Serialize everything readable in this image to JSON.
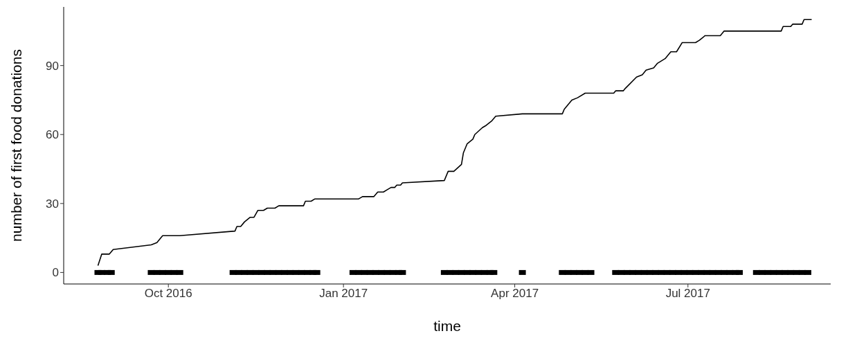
{
  "chart_data": {
    "type": "line",
    "xlabel": "time",
    "ylabel": "number of first food donations",
    "xlim": [
      "2016-08-07",
      "2017-09-14"
    ],
    "xticks": [
      {
        "value": "2016-10-01",
        "label": "Oct 2016"
      },
      {
        "value": "2017-01-01",
        "label": "Jan 2017"
      },
      {
        "value": "2017-04-01",
        "label": "Apr 2017"
      },
      {
        "value": "2017-07-01",
        "label": "Jul 2017"
      }
    ],
    "ylim": [
      -5,
      115.5
    ],
    "yticks": [
      0,
      30,
      60,
      90
    ],
    "grid": false,
    "series": [
      {
        "type": "line",
        "color": "#000000",
        "line_style": "solid",
        "x": [
          "2016-08-25",
          "2016-08-27",
          "2016-08-31",
          "2016-09-02",
          "2016-09-22",
          "2016-09-25",
          "2016-09-27",
          "2016-09-28",
          "2016-10-07",
          "2016-11-05",
          "2016-11-06",
          "2016-11-08",
          "2016-11-10",
          "2016-11-13",
          "2016-11-15",
          "2016-11-17",
          "2016-11-20",
          "2016-11-22",
          "2016-11-26",
          "2016-11-28",
          "2016-12-11",
          "2016-12-12",
          "2016-12-15",
          "2016-12-17",
          "2017-01-09",
          "2017-01-11",
          "2017-01-17",
          "2017-01-19",
          "2017-01-22",
          "2017-01-24",
          "2017-01-26",
          "2017-01-28",
          "2017-01-29",
          "2017-01-31",
          "2017-02-01",
          "2017-02-23",
          "2017-02-25",
          "2017-02-28",
          "2017-03-04",
          "2017-03-05",
          "2017-03-07",
          "2017-03-10",
          "2017-03-11",
          "2017-03-15",
          "2017-03-17",
          "2017-03-20",
          "2017-03-22",
          "2017-04-05",
          "2017-04-26",
          "2017-04-27",
          "2017-05-01",
          "2017-05-04",
          "2017-05-08",
          "2017-05-23",
          "2017-05-24",
          "2017-05-28",
          "2017-05-29",
          "2017-06-04",
          "2017-06-07",
          "2017-06-09",
          "2017-06-13",
          "2017-06-15",
          "2017-06-19",
          "2017-06-22",
          "2017-06-25",
          "2017-06-28",
          "2017-07-05",
          "2017-07-07",
          "2017-07-10",
          "2017-07-18",
          "2017-07-20",
          "2017-08-19",
          "2017-08-20",
          "2017-08-24",
          "2017-08-25",
          "2017-08-30",
          "2017-08-31",
          "2017-09-04"
        ],
        "values": [
          3,
          8,
          8,
          10,
          12,
          13,
          15,
          16,
          16,
          18,
          20,
          20,
          22,
          24,
          24,
          27,
          27,
          28,
          28,
          29,
          29,
          31,
          31,
          32,
          32,
          33,
          33,
          35,
          35,
          36,
          37,
          37,
          38,
          38,
          39,
          40,
          44,
          44,
          47,
          52,
          56,
          58,
          60,
          63,
          64,
          66,
          68,
          69,
          69,
          71,
          75,
          76,
          78,
          78,
          79,
          79,
          80,
          85,
          86,
          88,
          89,
          91,
          93,
          96,
          96,
          100,
          100,
          101,
          103,
          103,
          105,
          105,
          107,
          107,
          108,
          108,
          110,
          110
        ]
      },
      {
        "type": "scatter",
        "color": "#000000",
        "marker": "square",
        "x": [
          "2016-08-25",
          "2016-08-27",
          "2016-08-30",
          "2016-09-01",
          "2016-09-22",
          "2016-09-25",
          "2016-09-28",
          "2016-10-01",
          "2016-10-04",
          "2016-10-07",
          "2016-11-04",
          "2016-11-07",
          "2016-11-10",
          "2016-11-13",
          "2016-11-16",
          "2016-11-19",
          "2016-11-22",
          "2016-11-25",
          "2016-11-28",
          "2016-12-01",
          "2016-12-04",
          "2016-12-07",
          "2016-12-10",
          "2016-12-13",
          "2016-12-16",
          "2016-12-18",
          "2017-01-06",
          "2017-01-09",
          "2017-01-12",
          "2017-01-15",
          "2017-01-18",
          "2017-01-21",
          "2017-01-24",
          "2017-01-27",
          "2017-01-30",
          "2017-02-01",
          "2017-02-23",
          "2017-02-26",
          "2017-03-01",
          "2017-03-04",
          "2017-03-07",
          "2017-03-10",
          "2017-03-13",
          "2017-03-16",
          "2017-03-19",
          "2017-03-21",
          "2017-04-05",
          "2017-04-26",
          "2017-04-29",
          "2017-05-02",
          "2017-05-05",
          "2017-05-08",
          "2017-05-11",
          "2017-05-24",
          "2017-05-27",
          "2017-05-30",
          "2017-06-02",
          "2017-06-05",
          "2017-06-08",
          "2017-06-11",
          "2017-06-14",
          "2017-06-17",
          "2017-06-20",
          "2017-06-23",
          "2017-06-26",
          "2017-06-29",
          "2017-07-02",
          "2017-07-05",
          "2017-07-08",
          "2017-07-11",
          "2017-07-14",
          "2017-07-17",
          "2017-07-20",
          "2017-07-23",
          "2017-07-26",
          "2017-07-28",
          "2017-08-06",
          "2017-08-09",
          "2017-08-12",
          "2017-08-15",
          "2017-08-18",
          "2017-08-21",
          "2017-08-24",
          "2017-08-27",
          "2017-08-30",
          "2017-09-02"
        ],
        "values": [
          0,
          0,
          0,
          0,
          0,
          0,
          0,
          0,
          0,
          0,
          0,
          0,
          0,
          0,
          0,
          0,
          0,
          0,
          0,
          0,
          0,
          0,
          0,
          0,
          0,
          0,
          0,
          0,
          0,
          0,
          0,
          0,
          0,
          0,
          0,
          0,
          0,
          0,
          0,
          0,
          0,
          0,
          0,
          0,
          0,
          0,
          0,
          0,
          0,
          0,
          0,
          0,
          0,
          0,
          0,
          0,
          0,
          0,
          0,
          0,
          0,
          0,
          0,
          0,
          0,
          0,
          0,
          0,
          0,
          0,
          0,
          0,
          0,
          0,
          0,
          0,
          0,
          0,
          0,
          0,
          0,
          0,
          0,
          0,
          0,
          0
        ]
      }
    ]
  }
}
